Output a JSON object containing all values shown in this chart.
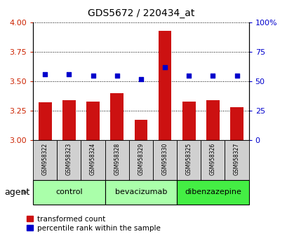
{
  "title": "GDS5672 / 220434_at",
  "samples": [
    "GSM958322",
    "GSM958323",
    "GSM958324",
    "GSM958328",
    "GSM958329",
    "GSM958330",
    "GSM958325",
    "GSM958326",
    "GSM958327"
  ],
  "bar_values": [
    3.32,
    3.34,
    3.33,
    3.4,
    3.17,
    3.93,
    3.33,
    3.34,
    3.28
  ],
  "dot_values": [
    3.56,
    3.56,
    3.55,
    3.55,
    3.52,
    3.62,
    3.55,
    3.55,
    3.55
  ],
  "bar_color": "#cc1111",
  "dot_color": "#0000cc",
  "ylim_left": [
    3.0,
    4.0
  ],
  "ylim_right": [
    0,
    100
  ],
  "yticks_left": [
    3.0,
    3.25,
    3.5,
    3.75,
    4.0
  ],
  "yticks_right": [
    0,
    25,
    50,
    75,
    100
  ],
  "groups": [
    {
      "label": "control",
      "indices": [
        0,
        1,
        2
      ],
      "color": "#aaffaa"
    },
    {
      "label": "bevacizumab",
      "indices": [
        3,
        4,
        5
      ],
      "color": "#aaffaa"
    },
    {
      "label": "dibenzazepine",
      "indices": [
        6,
        7,
        8
      ],
      "color": "#44ee44"
    }
  ],
  "agent_label": "agent",
  "legend_bar": "transformed count",
  "legend_dot": "percentile rank within the sample",
  "bar_bottom": 3.0,
  "tick_label_color_left": "#cc2200",
  "tick_label_color_right": "#0000cc",
  "sample_box_color": "#d0d0d0",
  "dot_size": 16
}
